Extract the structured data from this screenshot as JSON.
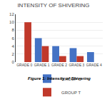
{
  "chart_data": {
    "type": "bar",
    "title": "INTENSITY OF SHIVERING",
    "caption": "Figure 1: Intensity of Shivering",
    "categories": [
      "GRADE 0",
      "GRADE 1",
      "GRADE 2",
      "GRADE 3",
      "GRADE 4"
    ],
    "series": [
      {
        "name": "GROUP C",
        "color": "#4472c4",
        "values": [
          0,
          6,
          4,
          3.5,
          2.5
        ]
      },
      {
        "name": "GROUP T",
        "color": "#c0392b",
        "values": [
          10,
          4,
          1.5,
          1.5,
          0
        ]
      }
    ],
    "ylim": [
      0,
      12
    ],
    "yticks": [
      0,
      2,
      4,
      6,
      8,
      10,
      12
    ],
    "grid": true,
    "legend": "bottom"
  }
}
